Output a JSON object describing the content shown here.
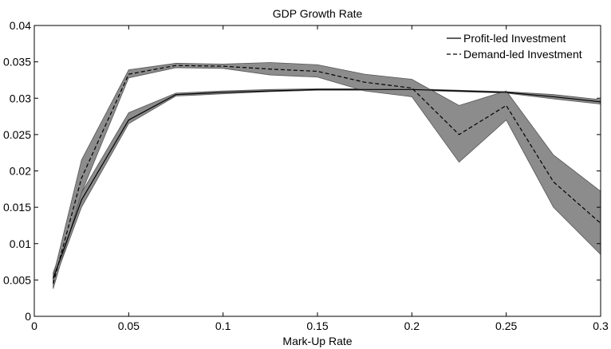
{
  "chart_data": {
    "type": "line",
    "title": "GDP Growth Rate",
    "xlabel": "Mark-Up Rate",
    "ylabel": "",
    "xlim": [
      0,
      0.3
    ],
    "ylim": [
      0,
      0.04
    ],
    "xticks": [
      0,
      0.05,
      0.1,
      0.15,
      0.2,
      0.25,
      0.3
    ],
    "xtick_labels": [
      "0",
      "0.05",
      "0.1",
      "0.15",
      "0.2",
      "0.25",
      "0.3"
    ],
    "yticks": [
      0,
      0.005,
      0.01,
      0.015,
      0.02,
      0.025,
      0.03,
      0.035,
      0.04
    ],
    "ytick_labels": [
      "0",
      "0.005",
      "0.01",
      "0.015",
      "0.02",
      "0.025",
      "0.03",
      "0.035",
      "0.04"
    ],
    "grid": false,
    "legend_position": "top-right",
    "band_color": "#8c8c8c",
    "line_color": "#000000",
    "x": [
      0.01,
      0.025,
      0.05,
      0.075,
      0.1,
      0.125,
      0.15,
      0.175,
      0.2,
      0.225,
      0.25,
      0.275,
      0.3
    ],
    "series": [
      {
        "name": "Profit-led Investment",
        "style": "solid",
        "values": [
          0.0052,
          0.016,
          0.027,
          0.0305,
          0.0308,
          0.031,
          0.0312,
          0.0312,
          0.0312,
          0.031,
          0.0308,
          0.0302,
          0.0295
        ],
        "band_lower": [
          0.0045,
          0.015,
          0.0265,
          0.0303,
          0.0306,
          0.0309,
          0.0311,
          0.0311,
          0.0311,
          0.0309,
          0.0307,
          0.0299,
          0.0292
        ],
        "band_upper": [
          0.006,
          0.017,
          0.028,
          0.0307,
          0.031,
          0.0312,
          0.0313,
          0.0313,
          0.0313,
          0.0311,
          0.0309,
          0.0305,
          0.0298
        ]
      },
      {
        "name": "Demand-led Investment",
        "style": "dashed",
        "values": [
          0.0045,
          0.019,
          0.0333,
          0.0345,
          0.0344,
          0.034,
          0.0337,
          0.0322,
          0.0314,
          0.025,
          0.029,
          0.0185,
          0.0128
        ],
        "band_lower": [
          0.0038,
          0.017,
          0.0328,
          0.0342,
          0.0341,
          0.0332,
          0.0329,
          0.031,
          0.0302,
          0.0212,
          0.027,
          0.015,
          0.0085
        ],
        "band_upper": [
          0.0055,
          0.0215,
          0.0339,
          0.0348,
          0.0347,
          0.0349,
          0.0346,
          0.0333,
          0.0326,
          0.029,
          0.031,
          0.0222,
          0.0172
        ]
      }
    ]
  }
}
